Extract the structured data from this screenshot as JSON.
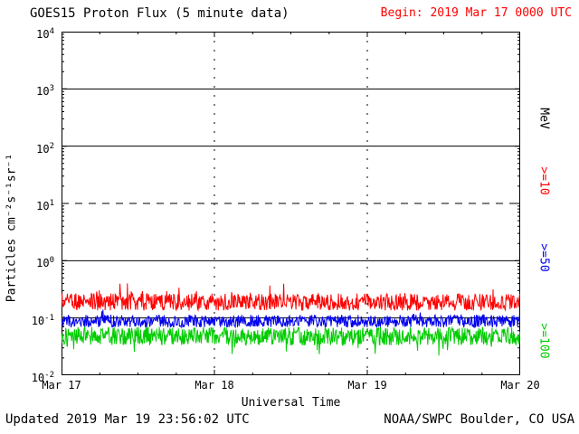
{
  "header": {
    "title": "GOES15 Proton Flux (5 minute data)",
    "begin_label": "Begin: 2019 Mar 17 0000 UTC",
    "begin_color": "#ff0000"
  },
  "footer": {
    "updated": "Updated 2019 Mar 19 23:56:02 UTC",
    "source": "NOAA/SWPC Boulder, CO USA"
  },
  "chart_data": {
    "type": "line",
    "title": "GOES15 Proton Flux (5 minute data)",
    "xlabel": "Universal Time",
    "ylabel": "Particles cm⁻²s⁻¹sr⁻¹",
    "right_axis_label": "MeV",
    "legend_position": "right",
    "x_ticks": [
      "Mar 17",
      "Mar 18",
      "Mar 19",
      "Mar 20"
    ],
    "days": 3,
    "points_per_day": 288,
    "seed": 20190317,
    "y_axis": {
      "scale": "log",
      "min_exp": -2,
      "max_exp": 4
    },
    "gridlines": {
      "solid_exps": [
        3,
        2,
        0,
        -1
      ],
      "dashed_exps": [
        1
      ],
      "vertical_dashed_days": [
        1,
        2
      ]
    },
    "series": [
      {
        "name": ">=10",
        "color": "#ff0000",
        "mean_flux": 0.19,
        "approx_min_flux": 0.12,
        "approx_max_flux": 0.38,
        "noise_log_amp": 0.3,
        "spike_prob": 0.05,
        "spike_log": 0.22
      },
      {
        "name": ">=50",
        "color": "#0000ee",
        "mean_flux": 0.088,
        "approx_min_flux": 0.065,
        "approx_max_flux": 0.13,
        "noise_log_amp": 0.22,
        "spike_prob": 0.02,
        "spike_log": 0.12
      },
      {
        "name": ">=100",
        "color": "#00cc00",
        "mean_flux": 0.048,
        "approx_min_flux": 0.03,
        "approx_max_flux": 0.075,
        "noise_log_amp": 0.32,
        "spike_prob": 0.04,
        "spike_log": -0.22
      }
    ]
  }
}
